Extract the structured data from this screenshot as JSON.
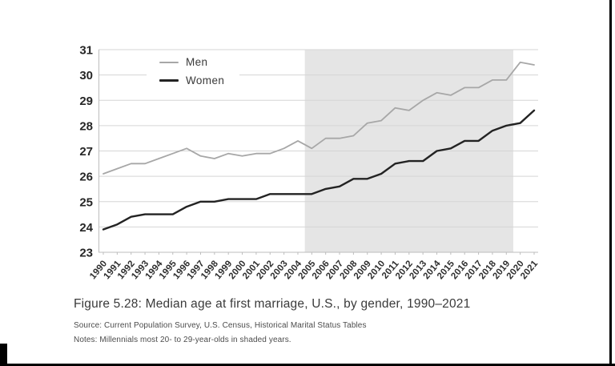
{
  "figure": {
    "caption": "Figure 5.28: Median age at first marriage, U.S., by gender, 1990–2021",
    "source": "Source: Current Population Survey, U.S. Census, Historical Marital Status Tables",
    "notes": "Notes: Millennials most 20- to 29-year-olds in shaded years."
  },
  "chart_data": {
    "type": "line",
    "title": "",
    "xlabel": "",
    "ylabel": "",
    "x": [
      1990,
      1991,
      1992,
      1993,
      1994,
      1995,
      1996,
      1997,
      1998,
      1999,
      2000,
      2001,
      2002,
      2003,
      2004,
      2005,
      2006,
      2007,
      2008,
      2009,
      2010,
      2011,
      2012,
      2013,
      2014,
      2015,
      2016,
      2017,
      2018,
      2019,
      2020,
      2021
    ],
    "series": [
      {
        "name": "Men",
        "color": "#a7a7a7",
        "stroke_width": 1.8,
        "values": [
          26.1,
          26.3,
          26.5,
          26.5,
          26.7,
          26.9,
          27.1,
          26.8,
          26.7,
          26.9,
          26.8,
          26.9,
          26.9,
          27.1,
          27.4,
          27.1,
          27.5,
          27.5,
          27.6,
          28.1,
          28.2,
          28.7,
          28.6,
          29.0,
          29.3,
          29.2,
          29.5,
          29.5,
          29.8,
          29.8,
          30.5,
          30.4
        ]
      },
      {
        "name": "Women",
        "color": "#232323",
        "stroke_width": 2.4,
        "values": [
          23.9,
          24.1,
          24.4,
          24.5,
          24.5,
          24.5,
          24.8,
          25.0,
          25.0,
          25.1,
          25.1,
          25.1,
          25.3,
          25.3,
          25.3,
          25.3,
          25.5,
          25.6,
          25.9,
          25.9,
          26.1,
          26.5,
          26.6,
          26.6,
          27.0,
          27.1,
          27.4,
          27.4,
          27.8,
          28.0,
          28.1,
          28.6
        ]
      }
    ],
    "ylim": [
      23,
      31
    ],
    "ytick_step": 1,
    "grid": true,
    "legend_position": "inside-top-left",
    "shaded_region": {
      "start_year": 2005,
      "end_year": 2019,
      "color": "#e5e5e5",
      "label": "Millennials most 20- to 29-year-olds in shaded years"
    }
  },
  "colors": {
    "background": "#ffffff",
    "gridline": "#d5d5d5",
    "axis": "#bdbdbd",
    "border_bars": "#000000"
  }
}
